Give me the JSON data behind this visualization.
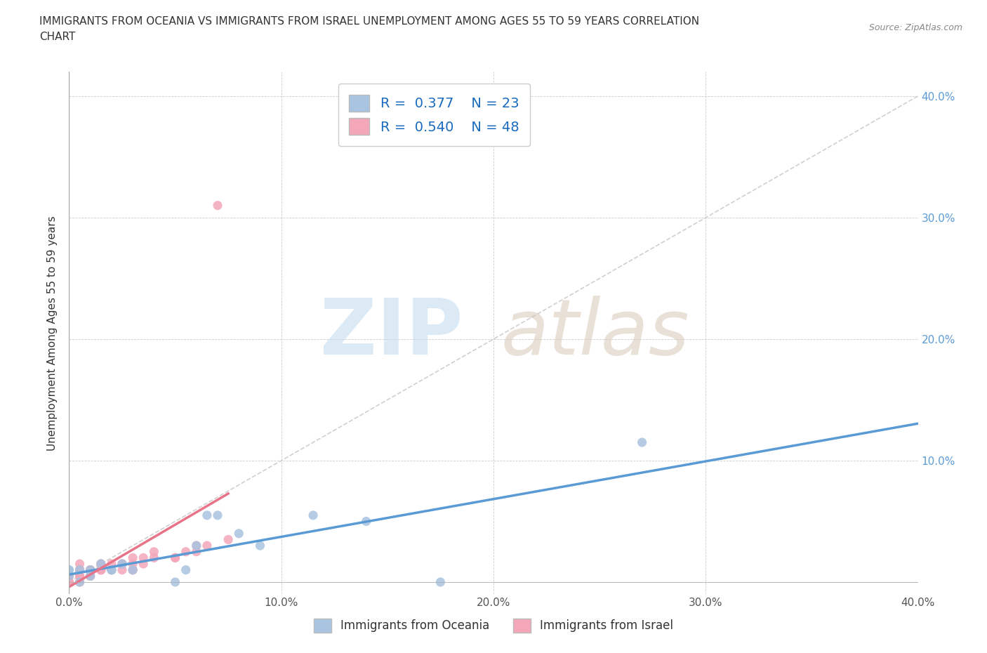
{
  "title": "IMMIGRANTS FROM OCEANIA VS IMMIGRANTS FROM ISRAEL UNEMPLOYMENT AMONG AGES 55 TO 59 YEARS CORRELATION\nCHART",
  "source": "Source: ZipAtlas.com",
  "ylabel": "Unemployment Among Ages 55 to 59 years",
  "xlim": [
    0.0,
    0.4
  ],
  "ylim": [
    -0.01,
    0.42
  ],
  "x_ticks": [
    0.0,
    0.1,
    0.2,
    0.3,
    0.4
  ],
  "y_ticks": [
    0.0,
    0.1,
    0.2,
    0.3,
    0.4
  ],
  "x_tick_labels": [
    "0.0%",
    "10.0%",
    "20.0%",
    "30.0%",
    "40.0%"
  ],
  "y_tick_labels_left": [
    "",
    "",
    "",
    "",
    ""
  ],
  "y_tick_labels_right": [
    "",
    "10.0%",
    "20.0%",
    "30.0%",
    "40.0%"
  ],
  "oceania_color": "#a8c4e0",
  "israel_color": "#f4a7b9",
  "oceania_line_color": "#5b9bd5",
  "israel_line_color": "#e8748a",
  "diagonal_color": "#d0d0d0",
  "R_oceania": 0.377,
  "N_oceania": 23,
  "R_israel": 0.54,
  "N_israel": 48,
  "oceania_x": [
    0.0,
    0.0,
    0.0,
    0.005,
    0.005,
    0.01,
    0.01,
    0.015,
    0.02,
    0.02,
    0.025,
    0.03,
    0.05,
    0.055,
    0.06,
    0.065,
    0.07,
    0.08,
    0.09,
    0.115,
    0.14,
    0.175,
    0.27
  ],
  "oceania_y": [
    0.005,
    0.01,
    0.01,
    0.0,
    0.01,
    0.005,
    0.01,
    0.015,
    0.01,
    0.01,
    0.015,
    0.01,
    0.0,
    0.01,
    0.03,
    0.055,
    0.055,
    0.04,
    0.03,
    0.055,
    0.05,
    0.0,
    0.115
  ],
  "israel_x": [
    0.0,
    0.0,
    0.0,
    0.0,
    0.0,
    0.0,
    0.005,
    0.005,
    0.005,
    0.005,
    0.005,
    0.005,
    0.005,
    0.005,
    0.005,
    0.01,
    0.01,
    0.01,
    0.01,
    0.01,
    0.01,
    0.015,
    0.015,
    0.015,
    0.015,
    0.015,
    0.02,
    0.02,
    0.02,
    0.025,
    0.025,
    0.025,
    0.03,
    0.03,
    0.03,
    0.03,
    0.035,
    0.035,
    0.04,
    0.04,
    0.05,
    0.05,
    0.055,
    0.06,
    0.06,
    0.065,
    0.07,
    0.075
  ],
  "israel_y": [
    0.0,
    0.0,
    0.005,
    0.005,
    0.005,
    0.005,
    0.0,
    0.005,
    0.005,
    0.005,
    0.01,
    0.01,
    0.01,
    0.01,
    0.015,
    0.005,
    0.005,
    0.01,
    0.01,
    0.01,
    0.01,
    0.01,
    0.01,
    0.01,
    0.015,
    0.015,
    0.01,
    0.01,
    0.015,
    0.01,
    0.015,
    0.015,
    0.01,
    0.01,
    0.015,
    0.02,
    0.015,
    0.02,
    0.02,
    0.025,
    0.02,
    0.02,
    0.025,
    0.025,
    0.03,
    0.03,
    0.31,
    0.035
  ]
}
